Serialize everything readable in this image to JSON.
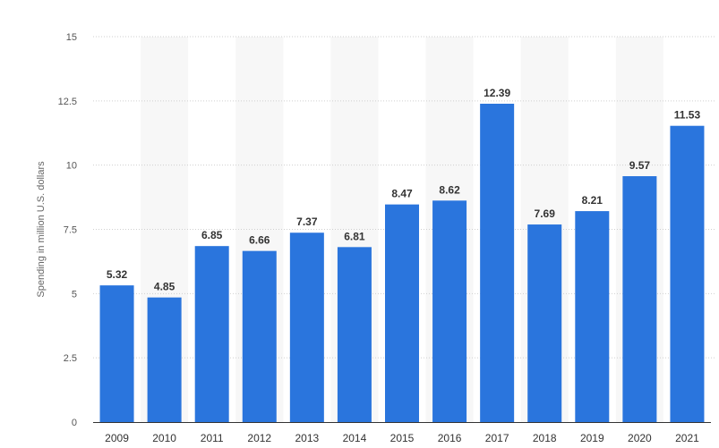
{
  "chart_data": {
    "type": "bar",
    "title": "",
    "xlabel": "",
    "ylabel": "Spending in million U.S. dollars",
    "categories": [
      "2009",
      "2010",
      "2011",
      "2012",
      "2013",
      "2014",
      "2015",
      "2016",
      "2017",
      "2018",
      "2019",
      "2020",
      "2021"
    ],
    "values": [
      5.32,
      4.85,
      6.85,
      6.66,
      7.37,
      6.81,
      8.47,
      8.62,
      12.39,
      7.69,
      8.21,
      9.57,
      11.53
    ],
    "data_labels": [
      "5.32",
      "4.85",
      "6.85",
      "6.66",
      "7.37",
      "6.81",
      "8.47",
      "8.62",
      "12.39",
      "7.69",
      "8.21",
      "9.57",
      "11.53"
    ],
    "ylim": [
      0,
      15
    ],
    "yticks": [
      0,
      2.5,
      5,
      7.5,
      10,
      12.5,
      15
    ],
    "ytick_labels": [
      "0",
      "2.5",
      "5",
      "7.5",
      "10",
      "12.5",
      "15"
    ],
    "grid": true,
    "legend": "none",
    "colors": {
      "bar": "#2a75dd",
      "band": "#f7f7f7",
      "grid": "#cfcfcf",
      "axis": "#333333"
    }
  }
}
